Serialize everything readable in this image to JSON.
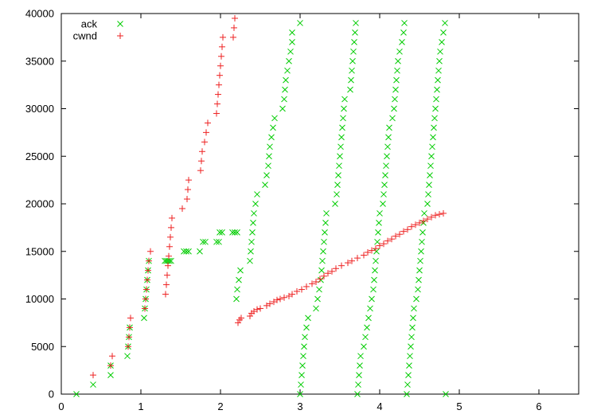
{
  "chart_data": {
    "type": "scatter",
    "title": "",
    "xlabel": "",
    "ylabel": "",
    "xlim": [
      0,
      6.5
    ],
    "ylim": [
      0,
      40000
    ],
    "x_ticks": [
      0,
      1,
      2,
      3,
      4,
      5,
      6
    ],
    "y_ticks": [
      0,
      5000,
      10000,
      15000,
      20000,
      25000,
      30000,
      35000,
      40000
    ],
    "grid": false,
    "legend_position": "top-left",
    "series": [
      {
        "name": "ack",
        "marker": "x",
        "color": "#00cc00",
        "points": [
          [
            0.19,
            0
          ],
          [
            0.4,
            1000
          ],
          [
            0.62,
            2000
          ],
          [
            0.62,
            3000
          ],
          [
            0.83,
            4000
          ],
          [
            0.84,
            5000
          ],
          [
            0.85,
            6000
          ],
          [
            0.86,
            7000
          ],
          [
            1.04,
            8000
          ],
          [
            1.05,
            9000
          ],
          [
            1.06,
            10000
          ],
          [
            1.07,
            11000
          ],
          [
            1.08,
            12000
          ],
          [
            1.09,
            13000
          ],
          [
            1.1,
            14000
          ],
          [
            1.3,
            14000
          ],
          [
            1.32,
            14000
          ],
          [
            1.34,
            14000
          ],
          [
            1.36,
            14000
          ],
          [
            1.38,
            14000
          ],
          [
            1.54,
            15000
          ],
          [
            1.57,
            15000
          ],
          [
            1.6,
            15000
          ],
          [
            1.74,
            15000
          ],
          [
            1.78,
            16000
          ],
          [
            1.81,
            16000
          ],
          [
            1.95,
            16000
          ],
          [
            1.98,
            16000
          ],
          [
            1.99,
            17000
          ],
          [
            2.02,
            17000
          ],
          [
            2.15,
            17000
          ],
          [
            2.18,
            17000
          ],
          [
            2.21,
            17000
          ],
          [
            2.2,
            10000
          ],
          [
            2.21,
            11000
          ],
          [
            2.23,
            12000
          ],
          [
            2.25,
            13000
          ],
          [
            2.37,
            14000
          ],
          [
            2.38,
            15000
          ],
          [
            2.39,
            16000
          ],
          [
            2.4,
            17000
          ],
          [
            2.41,
            18000
          ],
          [
            2.42,
            19000
          ],
          [
            2.44,
            20000
          ],
          [
            2.46,
            21000
          ],
          [
            2.56,
            22000
          ],
          [
            2.58,
            23000
          ],
          [
            2.6,
            24000
          ],
          [
            2.61,
            25000
          ],
          [
            2.62,
            26000
          ],
          [
            2.64,
            27000
          ],
          [
            2.66,
            28000
          ],
          [
            2.68,
            29000
          ],
          [
            2.78,
            30000
          ],
          [
            2.8,
            31000
          ],
          [
            2.81,
            32000
          ],
          [
            2.82,
            33000
          ],
          [
            2.84,
            34000
          ],
          [
            2.86,
            35000
          ],
          [
            2.88,
            36000
          ],
          [
            2.9,
            37000
          ],
          [
            2.9,
            38000
          ],
          [
            3.0,
            39000
          ],
          [
            3.0,
            0
          ],
          [
            3.01,
            1000
          ],
          [
            3.02,
            2000
          ],
          [
            3.03,
            3000
          ],
          [
            3.04,
            4000
          ],
          [
            3.05,
            5000
          ],
          [
            3.06,
            6000
          ],
          [
            3.08,
            7000
          ],
          [
            3.1,
            8000
          ],
          [
            3.2,
            9000
          ],
          [
            3.22,
            10000
          ],
          [
            3.24,
            11000
          ],
          [
            3.26,
            12000
          ],
          [
            3.27,
            13000
          ],
          [
            3.28,
            14000
          ],
          [
            3.29,
            15000
          ],
          [
            3.3,
            16000
          ],
          [
            3.31,
            17000
          ],
          [
            3.32,
            18000
          ],
          [
            3.33,
            19000
          ],
          [
            3.44,
            20000
          ],
          [
            3.46,
            21000
          ],
          [
            3.47,
            22000
          ],
          [
            3.48,
            23000
          ],
          [
            3.49,
            24000
          ],
          [
            3.5,
            25000
          ],
          [
            3.51,
            26000
          ],
          [
            3.52,
            27000
          ],
          [
            3.53,
            28000
          ],
          [
            3.54,
            29000
          ],
          [
            3.55,
            30000
          ],
          [
            3.56,
            31000
          ],
          [
            3.63,
            32000
          ],
          [
            3.64,
            33000
          ],
          [
            3.65,
            34000
          ],
          [
            3.66,
            35000
          ],
          [
            3.67,
            36000
          ],
          [
            3.68,
            37000
          ],
          [
            3.69,
            38000
          ],
          [
            3.7,
            39000
          ],
          [
            3.72,
            0
          ],
          [
            3.73,
            1000
          ],
          [
            3.74,
            2000
          ],
          [
            3.75,
            3000
          ],
          [
            3.76,
            4000
          ],
          [
            3.8,
            5000
          ],
          [
            3.82,
            6000
          ],
          [
            3.84,
            7000
          ],
          [
            3.86,
            8000
          ],
          [
            3.88,
            9000
          ],
          [
            3.9,
            10000
          ],
          [
            3.92,
            11000
          ],
          [
            3.93,
            12000
          ],
          [
            3.94,
            13000
          ],
          [
            3.95,
            14000
          ],
          [
            3.96,
            15000
          ],
          [
            3.97,
            16000
          ],
          [
            3.98,
            17000
          ],
          [
            3.99,
            18000
          ],
          [
            4.0,
            19000
          ],
          [
            4.04,
            20000
          ],
          [
            4.05,
            21000
          ],
          [
            4.06,
            22000
          ],
          [
            4.07,
            23000
          ],
          [
            4.08,
            24000
          ],
          [
            4.09,
            25000
          ],
          [
            4.1,
            26000
          ],
          [
            4.11,
            27000
          ],
          [
            4.12,
            28000
          ],
          [
            4.16,
            29000
          ],
          [
            4.18,
            30000
          ],
          [
            4.19,
            31000
          ],
          [
            4.2,
            32000
          ],
          [
            4.21,
            33000
          ],
          [
            4.22,
            34000
          ],
          [
            4.23,
            35000
          ],
          [
            4.25,
            36000
          ],
          [
            4.28,
            37000
          ],
          [
            4.3,
            38000
          ],
          [
            4.31,
            39000
          ],
          [
            4.34,
            0
          ],
          [
            4.35,
            1000
          ],
          [
            4.36,
            2000
          ],
          [
            4.37,
            3000
          ],
          [
            4.38,
            4000
          ],
          [
            4.39,
            5000
          ],
          [
            4.4,
            6000
          ],
          [
            4.41,
            7000
          ],
          [
            4.42,
            8000
          ],
          [
            4.43,
            9000
          ],
          [
            4.46,
            10000
          ],
          [
            4.48,
            11000
          ],
          [
            4.49,
            12000
          ],
          [
            4.5,
            13000
          ],
          [
            4.51,
            14000
          ],
          [
            4.52,
            15000
          ],
          [
            4.53,
            16000
          ],
          [
            4.54,
            17000
          ],
          [
            4.55,
            18000
          ],
          [
            4.56,
            19000
          ],
          [
            4.6,
            20000
          ],
          [
            4.61,
            21000
          ],
          [
            4.62,
            22000
          ],
          [
            4.63,
            23000
          ],
          [
            4.64,
            24000
          ],
          [
            4.65,
            25000
          ],
          [
            4.66,
            26000
          ],
          [
            4.67,
            27000
          ],
          [
            4.68,
            28000
          ],
          [
            4.69,
            29000
          ],
          [
            4.7,
            30000
          ],
          [
            4.71,
            31000
          ],
          [
            4.72,
            32000
          ],
          [
            4.73,
            33000
          ],
          [
            4.74,
            34000
          ],
          [
            4.75,
            35000
          ],
          [
            4.76,
            36000
          ],
          [
            4.78,
            37000
          ],
          [
            4.8,
            38000
          ],
          [
            4.82,
            39000
          ],
          [
            4.83,
            0
          ]
        ]
      },
      {
        "name": "cwnd",
        "marker": "+",
        "color": "#ee2222",
        "points": [
          [
            0.4,
            2000
          ],
          [
            0.62,
            3000
          ],
          [
            0.64,
            4000
          ],
          [
            0.84,
            5000
          ],
          [
            0.85,
            6000
          ],
          [
            0.86,
            7000
          ],
          [
            0.87,
            8000
          ],
          [
            1.05,
            9000
          ],
          [
            1.06,
            10000
          ],
          [
            1.07,
            11000
          ],
          [
            1.08,
            12000
          ],
          [
            1.09,
            13000
          ],
          [
            1.1,
            14000
          ],
          [
            1.12,
            15000
          ],
          [
            1.31,
            10500
          ],
          [
            1.32,
            11500
          ],
          [
            1.33,
            12500
          ],
          [
            1.34,
            13500
          ],
          [
            1.35,
            14500
          ],
          [
            1.36,
            15500
          ],
          [
            1.37,
            16500
          ],
          [
            1.38,
            17500
          ],
          [
            1.39,
            18500
          ],
          [
            1.52,
            19500
          ],
          [
            1.58,
            20500
          ],
          [
            1.59,
            21500
          ],
          [
            1.6,
            22500
          ],
          [
            1.75,
            23500
          ],
          [
            1.76,
            24500
          ],
          [
            1.77,
            25500
          ],
          [
            1.8,
            26500
          ],
          [
            1.82,
            27500
          ],
          [
            1.84,
            28500
          ],
          [
            1.95,
            29500
          ],
          [
            1.96,
            30500
          ],
          [
            1.97,
            31500
          ],
          [
            1.98,
            32500
          ],
          [
            1.99,
            33500
          ],
          [
            2.0,
            34500
          ],
          [
            2.01,
            35500
          ],
          [
            2.02,
            36500
          ],
          [
            2.03,
            37500
          ],
          [
            2.16,
            37500
          ],
          [
            2.17,
            38500
          ],
          [
            2.18,
            39500
          ],
          [
            2.22,
            7500
          ],
          [
            2.24,
            7800
          ],
          [
            2.26,
            8000
          ],
          [
            2.37,
            8200
          ],
          [
            2.39,
            8500
          ],
          [
            2.42,
            8700
          ],
          [
            2.46,
            8900
          ],
          [
            2.5,
            9000
          ],
          [
            2.58,
            9300
          ],
          [
            2.62,
            9500
          ],
          [
            2.67,
            9700
          ],
          [
            2.71,
            9900
          ],
          [
            2.75,
            10000
          ],
          [
            2.8,
            10150
          ],
          [
            2.86,
            10300
          ],
          [
            2.9,
            10500
          ],
          [
            2.96,
            10800
          ],
          [
            3.02,
            11000
          ],
          [
            3.08,
            11300
          ],
          [
            3.15,
            11600
          ],
          [
            3.2,
            11800
          ],
          [
            3.25,
            12100
          ],
          [
            3.3,
            12400
          ],
          [
            3.35,
            12700
          ],
          [
            3.4,
            12900
          ],
          [
            3.45,
            13200
          ],
          [
            3.52,
            13500
          ],
          [
            3.6,
            13800
          ],
          [
            3.65,
            14000
          ],
          [
            3.72,
            14300
          ],
          [
            3.8,
            14600
          ],
          [
            3.85,
            14900
          ],
          [
            3.9,
            15100
          ],
          [
            3.95,
            15300
          ],
          [
            4.0,
            15600
          ],
          [
            4.05,
            15800
          ],
          [
            4.1,
            16100
          ],
          [
            4.15,
            16300
          ],
          [
            4.2,
            16600
          ],
          [
            4.25,
            16800
          ],
          [
            4.3,
            17100
          ],
          [
            4.35,
            17300
          ],
          [
            4.4,
            17600
          ],
          [
            4.45,
            17800
          ],
          [
            4.5,
            18000
          ],
          [
            4.55,
            18200
          ],
          [
            4.6,
            18400
          ],
          [
            4.65,
            18600
          ],
          [
            4.7,
            18800
          ],
          [
            4.75,
            18900
          ],
          [
            4.8,
            19000
          ]
        ]
      }
    ]
  }
}
